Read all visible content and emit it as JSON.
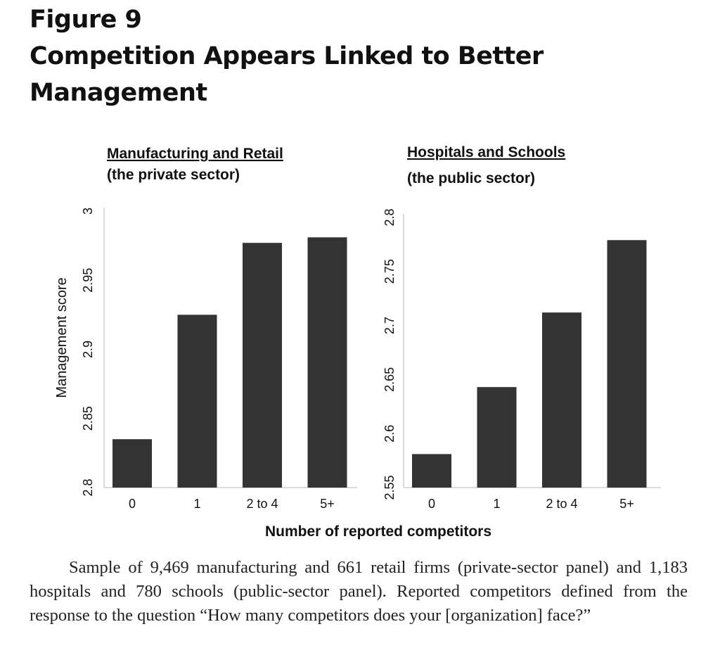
{
  "figure": {
    "label": "Figure 9",
    "title_line1": "Competition Appears Linked to Better",
    "title_line2": "Management"
  },
  "caption": "Sample of 9,469 manufacturing and 661 retail firms (private-sector panel) and 1,183 hospitals and 780 schools (public-sector panel). Reported competitors defined from the response to the question “How many competitors does your [organization] face?”",
  "x_axis_title": "Number of reported competitors",
  "y_axis_title": "Management score",
  "colors": {
    "bar": "#333333",
    "axis": "#cfcfcf"
  },
  "chart_data": [
    {
      "type": "bar",
      "title": "Manufacturing and Retail",
      "subtitle": "(the private sector)",
      "categories": [
        "0",
        "1",
        "2 to 4",
        "5+"
      ],
      "values": [
        2.835,
        2.925,
        2.977,
        2.981
      ],
      "ylim": [
        2.8,
        3.0
      ],
      "yticks": [
        "2.8",
        "2.85",
        "2.9",
        "2.95",
        "3"
      ],
      "ylabel": "Management score",
      "xlabel": "Number of reported competitors",
      "grid": false
    },
    {
      "type": "bar",
      "title": "Hospitals and Schools",
      "subtitle": "(the public sector)",
      "categories": [
        "0",
        "1",
        "2 to 4",
        "5+"
      ],
      "values": [
        2.581,
        2.643,
        2.712,
        2.779
      ],
      "ylim": [
        2.55,
        2.8
      ],
      "yticks": [
        "2.55",
        "2.6",
        "2.65",
        "2.7",
        "2.75",
        "2.8"
      ],
      "ylabel": "",
      "xlabel": "Number of reported competitors",
      "grid": false
    }
  ]
}
